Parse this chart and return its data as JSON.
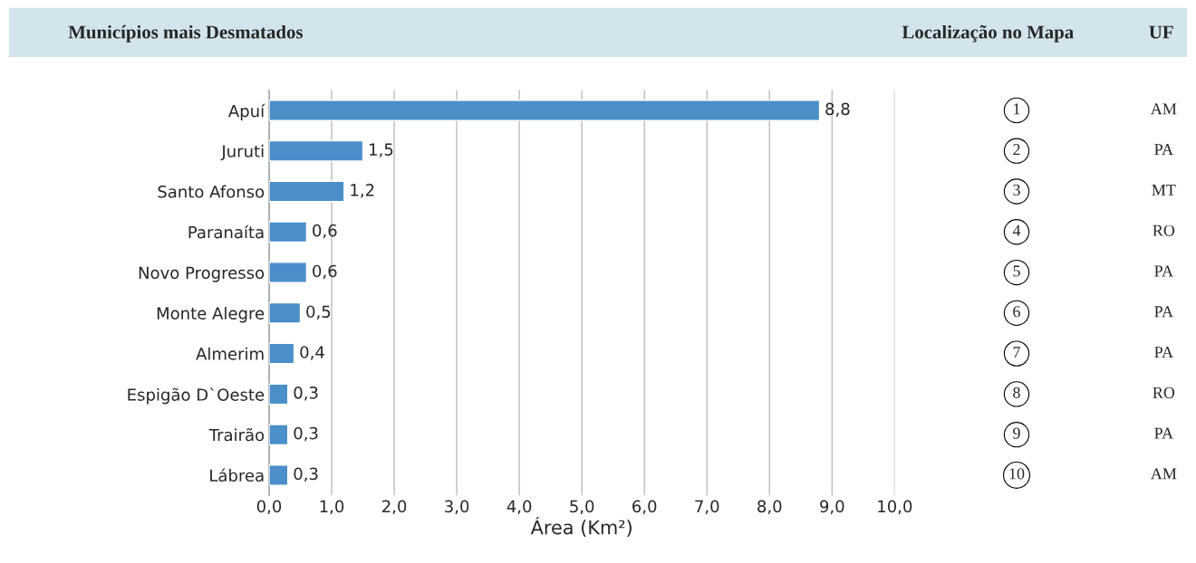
{
  "chart_data": {
    "type": "bar",
    "orientation": "horizontal",
    "title": "Municípios mais Desmatados",
    "xlabel": "Área (Km²)",
    "categories": [
      "Apuí",
      "Juruti",
      "Santo Afonso",
      "Paranaíta",
      "Novo Progresso",
      "Monte Alegre",
      "Almerim",
      "Espigão D`Oeste",
      "Trairão",
      "Lábrea"
    ],
    "values": [
      8.8,
      1.5,
      1.2,
      0.6,
      0.6,
      0.5,
      0.4,
      0.3,
      0.3,
      0.3
    ],
    "value_labels": [
      "8,8",
      "1,5",
      "1,2",
      "0,6",
      "0,6",
      "0,5",
      "0,4",
      "0,3",
      "0,3",
      "0,3"
    ],
    "color": "#4a8fc9",
    "xlim": [
      0,
      10
    ],
    "xticks": [
      {
        "value": 0,
        "label": "0,0"
      },
      {
        "value": 1,
        "label": "1,0"
      },
      {
        "value": 2,
        "label": "2,0"
      },
      {
        "value": 3,
        "label": "3,0"
      },
      {
        "value": 4,
        "label": "4,0"
      },
      {
        "value": 5,
        "label": "5,0"
      },
      {
        "value": 6,
        "label": "6,0"
      },
      {
        "value": 7,
        "label": "7,0"
      },
      {
        "value": 8,
        "label": "8,0"
      },
      {
        "value": 9,
        "label": "9,0"
      },
      {
        "value": 10,
        "label": "10,0"
      }
    ],
    "grid": "x",
    "annotations": [
      "Localização no Mapa",
      "UF",
      "1",
      "2",
      "3",
      "4",
      "5",
      "6",
      "7",
      "8",
      "9",
      "10",
      "AM",
      "PA",
      "MT",
      "RO",
      "PA",
      "PA",
      "PA",
      "RO",
      "PA",
      "AM"
    ]
  }
}
